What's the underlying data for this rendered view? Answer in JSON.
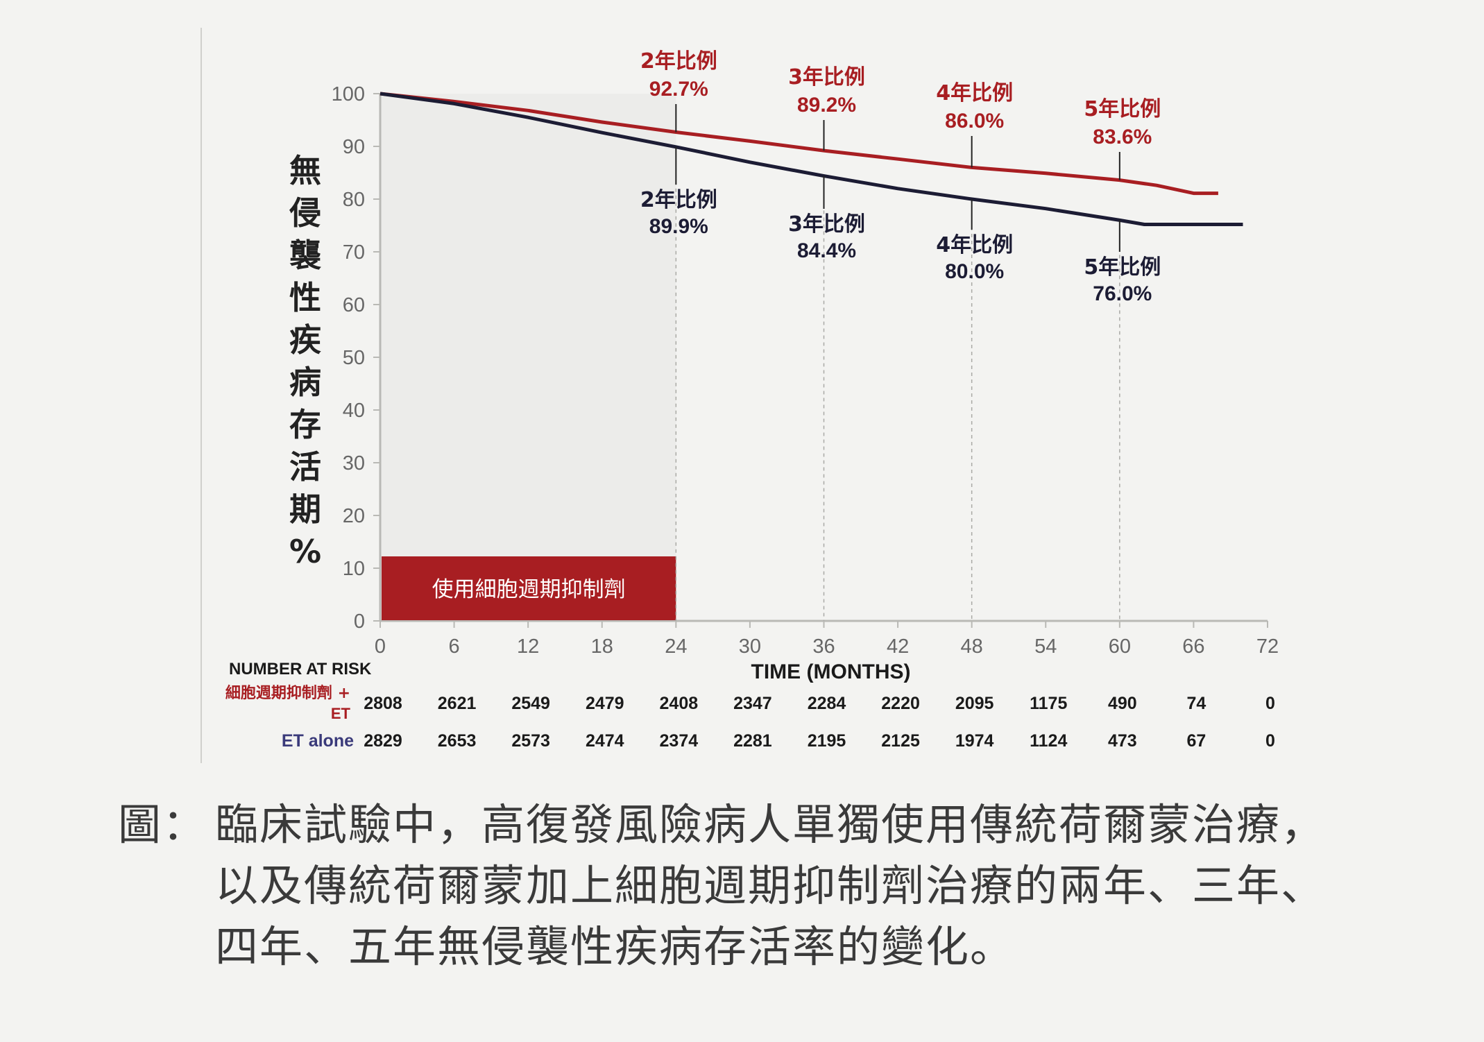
{
  "chart_data": {
    "type": "line",
    "ylabel": "無侵襲性疾病存活期%",
    "xlabel": "TIME (MONTHS)",
    "xlim": [
      0,
      72
    ],
    "ylim": [
      0,
      100
    ],
    "x_ticks": [
      0,
      6,
      12,
      18,
      24,
      30,
      36,
      42,
      48,
      54,
      60,
      66,
      72
    ],
    "y_ticks": [
      0,
      10,
      20,
      30,
      40,
      50,
      60,
      70,
      80,
      90,
      100
    ],
    "shaded_label": "使用細胞週期抑制劑",
    "shaded_range": [
      0,
      24
    ],
    "series": [
      {
        "name": "細胞週期抑制劑 + ET",
        "color": "#a81e22",
        "x": [
          0,
          6,
          12,
          18,
          24,
          30,
          36,
          42,
          48,
          54,
          60,
          63,
          66,
          68
        ],
        "y": [
          100,
          98.5,
          96.8,
          94.6,
          92.7,
          91.0,
          89.2,
          87.6,
          86.0,
          84.9,
          83.6,
          82.6,
          81.1,
          81.1
        ]
      },
      {
        "name": "ET alone",
        "color": "#1c1c34",
        "x": [
          0,
          6,
          12,
          18,
          24,
          30,
          36,
          42,
          48,
          54,
          60,
          62,
          66,
          70
        ],
        "y": [
          100,
          98.1,
          95.5,
          92.6,
          89.9,
          87.0,
          84.4,
          82.0,
          80.0,
          78.2,
          76.0,
          75.2,
          75.2,
          75.2
        ]
      }
    ],
    "annotations_upper": [
      {
        "label": "2年比例",
        "value": "92.7%",
        "x": 24
      },
      {
        "label": "3年比例",
        "value": "89.2%",
        "x": 36
      },
      {
        "label": "4年比例",
        "value": "86.0%",
        "x": 48
      },
      {
        "label": "5年比例",
        "value": "83.6%",
        "x": 60
      }
    ],
    "annotations_lower": [
      {
        "label": "2年比例",
        "value": "89.9%",
        "x": 24
      },
      {
        "label": "3年比例",
        "value": "84.4%",
        "x": 36
      },
      {
        "label": "4年比例",
        "value": "80.0%",
        "x": 48
      },
      {
        "label": "5年比例",
        "value": "76.0%",
        "x": 60
      }
    ],
    "risk_table": {
      "header": "NUMBER AT RISK",
      "rows": [
        {
          "label": "細胞週期抑制劑 +",
          "label2": "ET",
          "values": [
            2808,
            2621,
            2549,
            2479,
            2408,
            2347,
            2284,
            2220,
            2095,
            1175,
            490,
            74,
            0
          ]
        },
        {
          "label": "ET alone",
          "label2": "",
          "values": [
            2829,
            2653,
            2573,
            2474,
            2374,
            2281,
            2195,
            2125,
            1974,
            1124,
            473,
            67,
            0
          ]
        }
      ]
    }
  },
  "caption": {
    "label": "圖：",
    "lines": [
      "臨床試驗中，高復發風險病人單獨使用傳統荷爾蒙治療，",
      "以及傳統荷爾蒙加上細胞週期抑制劑治療的兩年、三年、",
      "四年、五年無侵襲性疾病存活率的變化。"
    ]
  }
}
